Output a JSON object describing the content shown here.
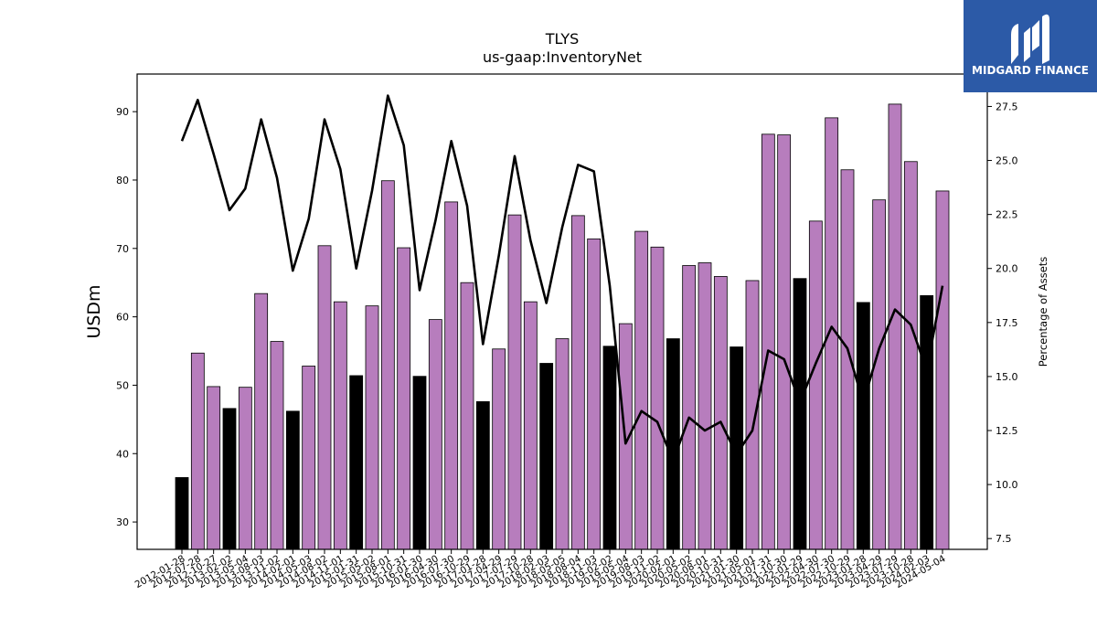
{
  "chart_data": {
    "type": "bar",
    "title": "TLYS",
    "subtitle": "us-gaap:InventoryNet",
    "ylabel": "USDm",
    "y2label": "Percentage of Assets",
    "ylim": [
      26,
      95.5
    ],
    "y2lim": [
      7.0,
      29.0
    ],
    "yticks": [
      30,
      40,
      50,
      60,
      70,
      80,
      90
    ],
    "y2ticks": [
      "7.5",
      "10.0",
      "12.5",
      "15.0",
      "17.5",
      "20.0",
      "22.5",
      "25.0",
      "27.5"
    ],
    "colors": {
      "bar_q4": "#000000",
      "bar_other": "#b77dbd",
      "line": "#000000"
    },
    "categories": [
      "2012-01-28",
      "2012-07-28",
      "2012-10-27",
      "2013-02-02",
      "2013-05-04",
      "2013-08-03",
      "2013-11-02",
      "2014-02-01",
      "2014-05-03",
      "2014-08-02",
      "2014-11-01",
      "2015-01-31",
      "2015-05-02",
      "2015-08-01",
      "2015-10-31",
      "2016-01-30",
      "2016-04-30",
      "2016-07-30",
      "2016-10-29",
      "2017-01-28",
      "2017-04-29",
      "2017-07-29",
      "2017-10-28",
      "2018-02-03",
      "2018-05-05",
      "2018-08-04",
      "2018-11-03",
      "2019-02-02",
      "2019-05-04",
      "2019-08-03",
      "2019-11-02",
      "2020-02-01",
      "2020-05-02",
      "2020-08-01",
      "2020-10-31",
      "2021-01-30",
      "2021-05-01",
      "2021-07-31",
      "2021-10-30",
      "2022-01-29",
      "2022-04-30",
      "2022-07-30",
      "2022-10-29",
      "2023-01-28",
      "2023-04-29",
      "2023-07-29",
      "2023-10-28",
      "2024-02-03",
      "2024-05-04"
    ],
    "series": [
      {
        "kind": "bar",
        "values": [
          36.5,
          54.7,
          49.8,
          46.6,
          49.7,
          63.4,
          56.4,
          46.2,
          52.8,
          70.4,
          62.2,
          51.4,
          61.6,
          79.9,
          70.1,
          51.3,
          59.6,
          76.8,
          65.0,
          47.6,
          55.3,
          74.9,
          62.2,
          53.2,
          56.8,
          74.8,
          71.4,
          55.7,
          59.0,
          72.5,
          70.2,
          56.8,
          67.5,
          67.9,
          65.9,
          55.6,
          65.3,
          86.7,
          86.6,
          65.6,
          74.0,
          89.1,
          81.5,
          62.1,
          77.1,
          91.1,
          82.7,
          63.1,
          78.4
        ],
        "q4_flags": [
          1,
          0,
          0,
          1,
          0,
          0,
          0,
          1,
          0,
          0,
          0,
          1,
          0,
          0,
          0,
          1,
          0,
          0,
          0,
          1,
          0,
          0,
          0,
          1,
          0,
          0,
          0,
          1,
          0,
          0,
          0,
          1,
          0,
          0,
          0,
          1,
          0,
          0,
          0,
          1,
          0,
          0,
          0,
          1,
          0,
          0,
          0,
          1,
          0
        ]
      },
      {
        "kind": "line",
        "axis": "right",
        "values": [
          25.9,
          27.8,
          25.3,
          22.7,
          23.7,
          26.9,
          24.2,
          19.9,
          22.3,
          26.9,
          24.6,
          20.0,
          23.6,
          28.0,
          25.7,
          19.0,
          22.2,
          25.9,
          22.9,
          16.5,
          20.6,
          25.2,
          21.3,
          18.4,
          21.9,
          24.8,
          24.5,
          19.2,
          11.9,
          13.4,
          12.9,
          11.1,
          13.1,
          12.5,
          12.9,
          11.4,
          12.5,
          16.2,
          15.8,
          13.8,
          15.6,
          17.3,
          16.3,
          13.8,
          16.3,
          18.1,
          17.4,
          15.3,
          19.2
        ]
      }
    ]
  },
  "logo": {
    "text": "MIDGARD FINANCE",
    "bg_color": "#2c5aa7"
  }
}
